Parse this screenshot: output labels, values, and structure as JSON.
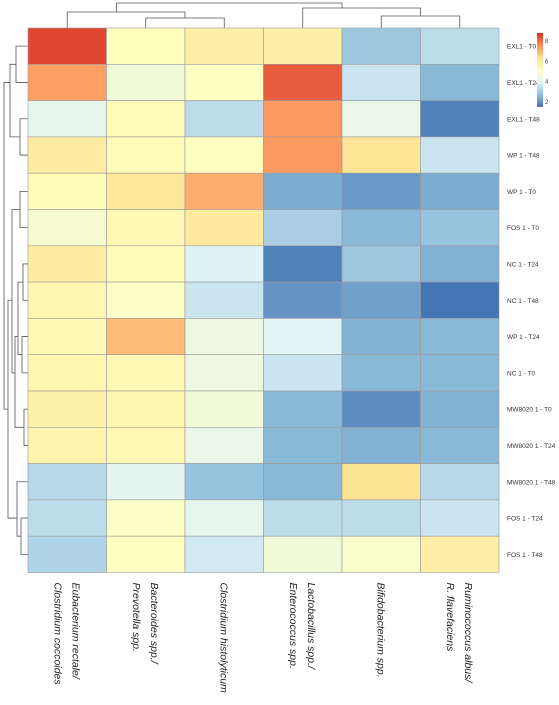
{
  "chart_data": {
    "type": "heatmap",
    "title": "",
    "columns": [
      {
        "lines": [
          "Eubacterium rectale/",
          "Clostridium coccoides"
        ]
      },
      {
        "lines": [
          "Bacteroides spp./",
          "Prevotella spp."
        ]
      },
      {
        "lines": [
          "Clostridium histolyticum"
        ]
      },
      {
        "lines": [
          "Lactobacillus spp./",
          "Enterococcus spp."
        ]
      },
      {
        "lines": [
          "Bifidobacterium spp."
        ]
      },
      {
        "lines": [
          "Ruminococcus albus/",
          "R. flavefaciens"
        ]
      }
    ],
    "rows": [
      "EXL1 - T0",
      "EXL1 - T24",
      "EXL1 - T48",
      "WP 1 - T48",
      "WP 1 - T0",
      "FOS 1 - T0",
      "NC 1 - T24",
      "NC 1 - T48",
      "WP 1 - T24",
      "NC 1 - T0",
      "MW8020 1 - T0",
      "MW8020 1 - T24",
      "MW8020 1 - T48",
      "FOS 1 - T24",
      "FOS 1 - T48"
    ],
    "values": [
      [
        8.5,
        5.2,
        5.8,
        5.8,
        2.9,
        3.4
      ],
      [
        7.3,
        4.6,
        5.1,
        8.2,
        3.6,
        2.6
      ],
      [
        4.2,
        5.3,
        3.4,
        7.4,
        4.3,
        1.7
      ],
      [
        5.9,
        5.3,
        5.1,
        7.4,
        6.2,
        3.6
      ],
      [
        5.3,
        6.1,
        7.1,
        2.4,
        2.1,
        2.4
      ],
      [
        4.8,
        5.4,
        6.0,
        3.1,
        2.6,
        2.8
      ],
      [
        5.9,
        5.3,
        3.9,
        1.7,
        2.9,
        2.5
      ],
      [
        5.5,
        5.0,
        3.6,
        2.0,
        2.2,
        1.5
      ],
      [
        5.4,
        6.9,
        4.4,
        4.0,
        2.5,
        2.6
      ],
      [
        5.5,
        5.4,
        4.4,
        3.6,
        2.6,
        2.6
      ],
      [
        5.7,
        5.5,
        4.6,
        2.6,
        1.9,
        2.5
      ],
      [
        5.6,
        5.4,
        4.3,
        2.6,
        2.5,
        2.6
      ],
      [
        3.3,
        4.1,
        2.8,
        2.6,
        6.3,
        3.3
      ],
      [
        3.4,
        5.0,
        4.2,
        3.4,
        3.4,
        3.6
      ],
      [
        3.2,
        5.1,
        3.7,
        4.6,
        4.9,
        5.8
      ]
    ],
    "colorbar": {
      "ticks": [
        2,
        4,
        6,
        8
      ],
      "range": [
        1.5,
        8.8
      ],
      "colors": [
        "#4575b4",
        "#91bfdb",
        "#e0f3f8",
        "#ffffbf",
        "#fee090",
        "#fc8d59",
        "#d73027"
      ]
    },
    "dendrograms": "rows-left, columns-top"
  }
}
